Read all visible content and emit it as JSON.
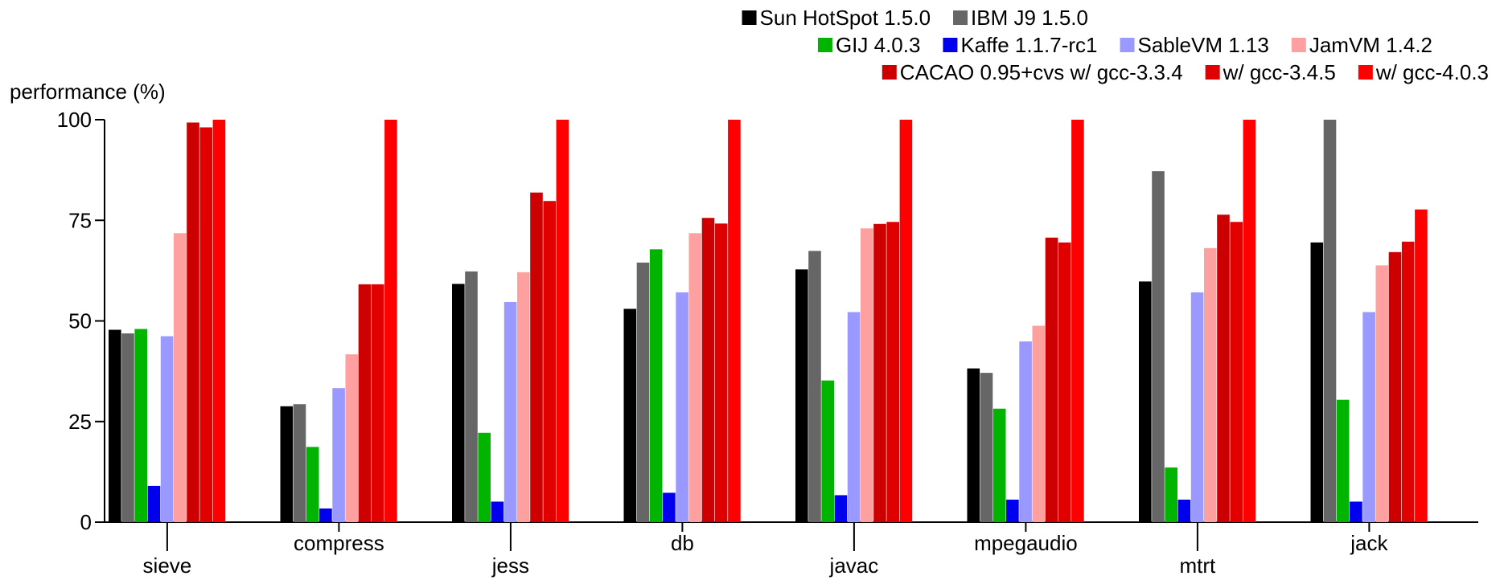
{
  "chart_data": {
    "type": "bar",
    "ylabel": "performance (%)",
    "xlabel": "",
    "ylim": [
      0,
      100
    ],
    "yticks": [
      0,
      25,
      50,
      75,
      100
    ],
    "legend_placement": "top-right",
    "grid": false,
    "categories": [
      "sieve",
      "compress",
      "jess",
      "db",
      "javac",
      "mpegaudio",
      "mtrt",
      "jack"
    ],
    "series": [
      {
        "name": "Sun HotSpot 1.5.0",
        "color": "#000000",
        "values": [
          47.8,
          28.8,
          59.2,
          53.0,
          62.8,
          38.2,
          59.8,
          69.5
        ]
      },
      {
        "name": "IBM J9 1.5.0",
        "color": "#666666",
        "values": [
          46.9,
          29.3,
          62.3,
          64.5,
          67.4,
          37.1,
          87.2,
          100
        ]
      },
      {
        "name": "GIJ 4.0.3",
        "color": "#00b400",
        "values": [
          48.0,
          18.7,
          22.2,
          67.8,
          35.2,
          28.2,
          13.6,
          30.4
        ]
      },
      {
        "name": "Kaffe 1.1.7-rc1",
        "color": "#0000ee",
        "values": [
          9.0,
          3.4,
          5.1,
          7.3,
          6.7,
          5.6,
          5.6,
          5.1
        ]
      },
      {
        "name": "SableVM 1.13",
        "color": "#9999ff",
        "values": [
          46.2,
          33.3,
          54.7,
          57.1,
          52.2,
          44.9,
          57.1,
          52.2
        ]
      },
      {
        "name": "JamVM 1.4.2",
        "color": "#ffa0a0",
        "values": [
          71.8,
          41.7,
          62.1,
          71.8,
          73.0,
          48.8,
          68.1,
          63.8
        ]
      },
      {
        "name": "CACAO 0.95+cvs w/ gcc-3.3.4",
        "color": "#cc0000",
        "values": [
          99.3,
          59.1,
          81.9,
          75.6,
          74.1,
          70.7,
          76.4,
          67.1
        ]
      },
      {
        "name": "w/ gcc-3.4.5",
        "color": "#e00000",
        "values": [
          98.1,
          59.1,
          79.8,
          74.2,
          74.6,
          69.5,
          74.6,
          69.7
        ]
      },
      {
        "name": "w/ gcc-4.0.3",
        "color": "#ff0000",
        "values": [
          100,
          100,
          100,
          100,
          100,
          100,
          100,
          77.7
        ]
      }
    ]
  }
}
